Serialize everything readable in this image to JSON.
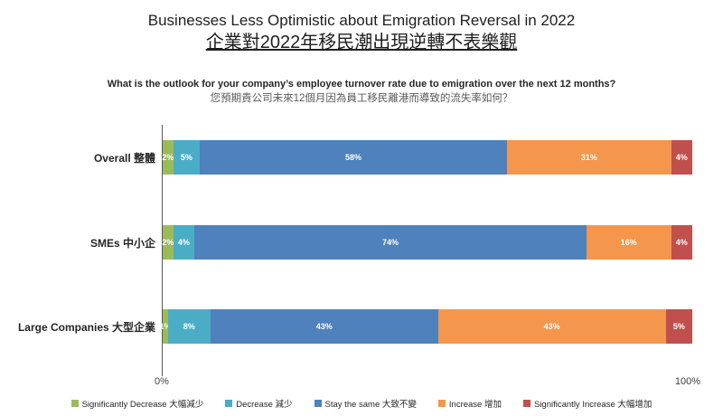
{
  "chart_data": {
    "type": "bar",
    "orientation": "horizontal_stacked",
    "title": "Businesses Less Optimistic about Emigration Reversal in 2022",
    "title_zh": "企業對2022年移民潮出現逆轉不表樂觀",
    "question": "What is the outlook for your company’s employee turnover rate due to emigration over the next 12 months?",
    "question_zh": "您預期貴公司未來12個月因為員工移民離港而導致的流失率如何？",
    "categories": [
      "Overall 整體",
      "SMEs 中小企",
      "Large Companies 大型企業"
    ],
    "series": [
      {
        "name": "Significantly Decrease 大幅減少",
        "color": "#9BBB59",
        "values": [
          2,
          2,
          1
        ]
      },
      {
        "name": "Decrease 減少",
        "color": "#4BACC6",
        "values": [
          5,
          4,
          8
        ]
      },
      {
        "name": "Stay the same 大致不變",
        "color": "#4F81BD",
        "values": [
          58,
          74,
          43
        ]
      },
      {
        "name": "Increase 增加",
        "color": "#F4964B",
        "values": [
          31,
          16,
          43
        ]
      },
      {
        "name": "Significantly Increase 大幅增加",
        "color": "#C0504D",
        "values": [
          4,
          4,
          5
        ]
      }
    ],
    "value_suffix": "%",
    "xlim": [
      0,
      100
    ],
    "x_ticks": [
      "0%",
      "100%"
    ],
    "legend_position": "bottom",
    "axis_color": "#595959"
  }
}
